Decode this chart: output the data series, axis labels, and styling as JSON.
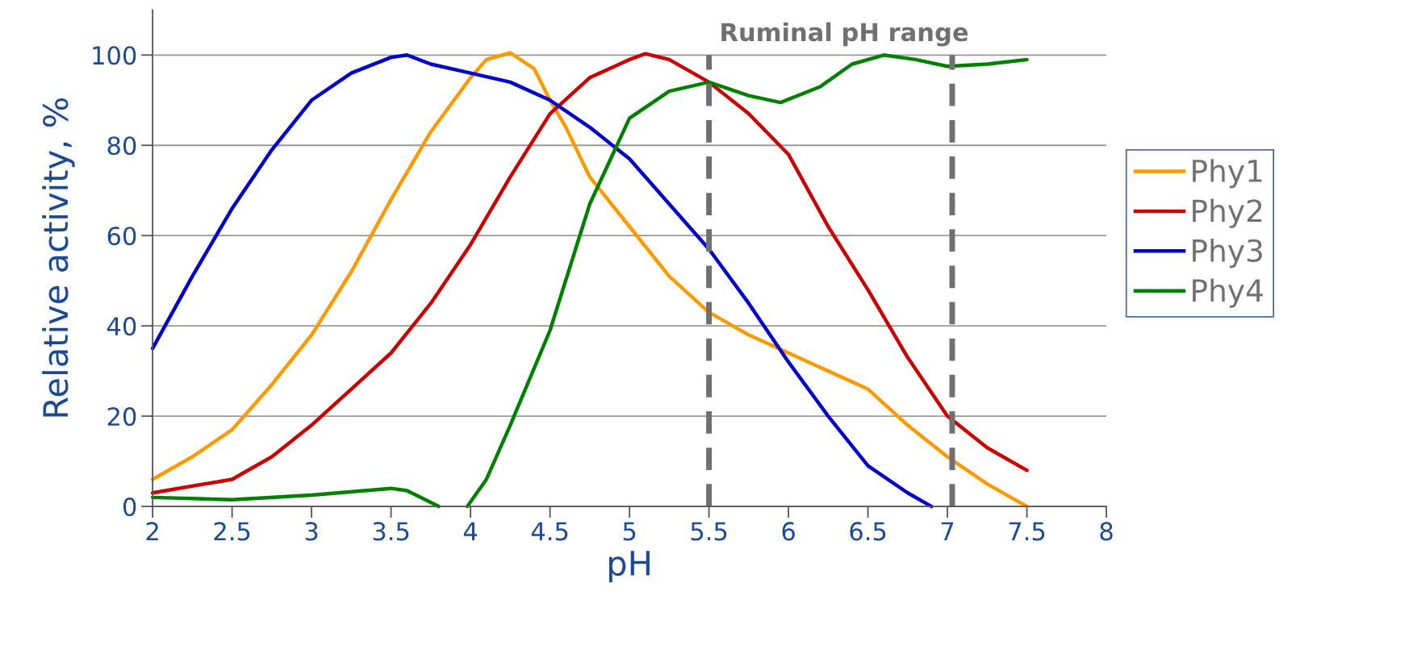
{
  "chart_data": {
    "type": "line",
    "xlabel": "pH",
    "ylabel": "Relative activity, %",
    "xlim": [
      2,
      8
    ],
    "ylim": [
      0,
      110
    ],
    "xticks": [
      2,
      2.5,
      3,
      3.5,
      4,
      4.5,
      5,
      5.5,
      6,
      6.5,
      7,
      7.5,
      8
    ],
    "yticks": [
      0,
      20,
      40,
      60,
      80,
      100
    ],
    "grid": "y",
    "legend": "right",
    "marker": "none",
    "line_style": "solid",
    "series": [
      {
        "name": "Phy1",
        "color": "#ff9900",
        "x": [
          2,
          2.25,
          2.5,
          2.75,
          3,
          3.25,
          3.5,
          3.75,
          4,
          4.1,
          4.25,
          4.4,
          4.5,
          4.6,
          4.75,
          5,
          5.25,
          5.5,
          5.75,
          6,
          6.25,
          6.5,
          6.75,
          7,
          7.25,
          7.5
        ],
        "values": [
          6,
          11,
          17,
          27,
          38,
          52,
          68,
          83,
          95,
          99,
          100.5,
          97,
          90,
          84,
          73,
          62,
          51,
          43,
          38,
          34,
          30,
          26,
          18,
          11,
          5,
          0
        ]
      },
      {
        "name": "Phy2",
        "color": "#cc0000",
        "x": [
          2,
          2.5,
          2.75,
          3,
          3.25,
          3.5,
          3.75,
          4,
          4.25,
          4.5,
          4.75,
          5,
          5.1,
          5.25,
          5.5,
          5.75,
          6,
          6.25,
          6.5,
          6.75,
          7,
          7.25,
          7.5
        ],
        "values": [
          3,
          6,
          11,
          18,
          26,
          34,
          45,
          58,
          73,
          87,
          95,
          99,
          100.3,
          99,
          94,
          87,
          78,
          62,
          48,
          33,
          20,
          13,
          8
        ]
      },
      {
        "name": "Phy3",
        "color": "#0000cc",
        "x": [
          2,
          2.25,
          2.5,
          2.75,
          3,
          3.25,
          3.5,
          3.6,
          3.75,
          4,
          4.25,
          4.5,
          4.75,
          5,
          5.25,
          5.5,
          5.75,
          6,
          6.25,
          6.5,
          6.75,
          6.9
        ],
        "values": [
          35,
          51,
          66,
          79,
          90,
          96,
          99.5,
          100,
          98,
          96,
          94,
          90,
          84,
          77,
          67,
          57,
          45,
          32,
          20,
          9,
          3,
          0
        ]
      },
      {
        "name": "Phy4",
        "color": "#008000",
        "x": [
          2,
          2.5,
          3,
          3.5,
          3.6,
          3.8,
          3.9,
          3.98,
          4.1,
          4.25,
          4.5,
          4.75,
          5,
          5.25,
          5.5,
          5.75,
          5.95,
          6.2,
          6.4,
          6.6,
          6.8,
          7,
          7.25,
          7.5
        ],
        "values": [
          2,
          1.5,
          2.5,
          4,
          3.5,
          0,
          null,
          0,
          6,
          18,
          39,
          67,
          86,
          92,
          94,
          91,
          89.5,
          93,
          98,
          100,
          99,
          97.5,
          98,
          99
        ]
      }
    ],
    "ref_lines": [
      {
        "axis": "x",
        "value": 5.5,
        "color": "#707070",
        "line_style": "dashed"
      },
      {
        "axis": "x",
        "value": 7.03,
        "color": "#707070",
        "line_style": "dashed"
      }
    ],
    "annotations": [
      "Ruminal pH range"
    ]
  }
}
